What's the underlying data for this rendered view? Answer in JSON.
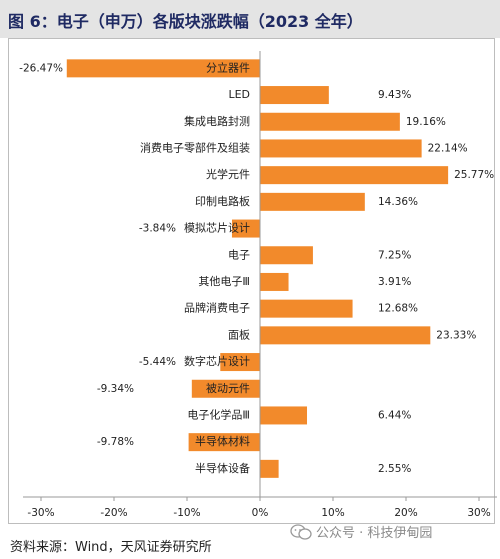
{
  "figure": {
    "title": "图 6：电子（申万）各版块涨跌幅（2023 全年）",
    "source": "资料来源：Wind，天风证券研究所",
    "watermark": "公众号 · 科技伊甸园",
    "watermark_icon": "wechat-icon"
  },
  "colors": {
    "bar": "#f28a2b",
    "axis": "#9a9a9a",
    "text": "#222222",
    "title": "#1f2a63"
  },
  "chart_data": {
    "type": "bar",
    "orientation": "horizontal",
    "categories": [
      "分立器件",
      "LED",
      "集成电路封测",
      "消费电子零部件及组装",
      "光学元件",
      "印制电路板",
      "模拟芯片设计",
      "电子",
      "其他电子Ⅲ",
      "品牌消费电子",
      "面板",
      "数字芯片设计",
      "被动元件",
      "电子化学品Ⅲ",
      "半导体材料",
      "半导体设备"
    ],
    "values": [
      -26.47,
      9.43,
      19.16,
      22.14,
      25.77,
      14.36,
      -3.84,
      7.25,
      3.91,
      12.68,
      23.33,
      -5.44,
      -9.34,
      6.44,
      -9.78,
      2.55
    ],
    "value_labels": [
      "-26.47%",
      "9.43%",
      "19.16%",
      "22.14%",
      "25.77%",
      "14.36%",
      "-3.84%",
      "7.25%",
      "3.91%",
      "12.68%",
      "23.33%",
      "-5.44%",
      "-9.34%",
      "6.44%",
      "-9.78%",
      "2.55%"
    ],
    "x_ticks": [
      -30,
      -20,
      -10,
      0,
      10,
      20,
      30
    ],
    "x_tick_labels": [
      "-30%",
      "-20%",
      "-10%",
      "0%",
      "10%",
      "20%",
      "30%"
    ],
    "xlim": [
      -30,
      30
    ],
    "grid": false,
    "legend": "none"
  }
}
